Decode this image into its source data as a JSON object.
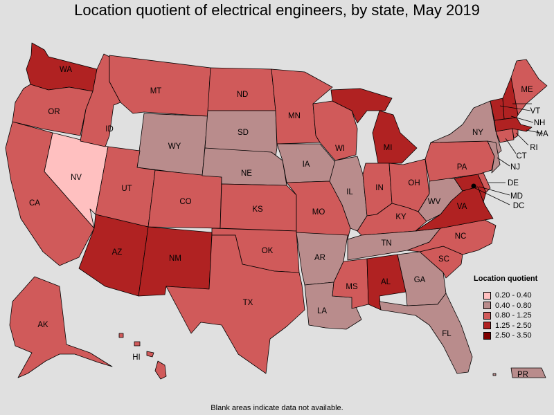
{
  "title": "Location quotient of electrical engineers, by state, May 2019",
  "footnote": "Blank areas indicate data not available.",
  "legend": {
    "title": "Location quotient",
    "bins": [
      {
        "label": "0.20 - 0.40",
        "color": "#ffc0c0"
      },
      {
        "label": "0.40 - 0.80",
        "color": "#b98c8c"
      },
      {
        "label": "0.80 - 1.25",
        "color": "#d05a5a"
      },
      {
        "label": "1.25 - 2.50",
        "color": "#b02222"
      },
      {
        "label": "2.50 - 3.50",
        "color": "#7e0000"
      }
    ]
  },
  "states": {
    "WA": "1.25 - 2.50",
    "OR": "0.80 - 1.25",
    "CA": "0.80 - 1.25",
    "NV": "0.20 - 0.40",
    "ID": "0.80 - 1.25",
    "MT": "0.80 - 1.25",
    "WY": "0.40 - 0.80",
    "UT": "0.80 - 1.25",
    "AZ": "1.25 - 2.50",
    "CO": "0.80 - 1.25",
    "NM": "1.25 - 2.50",
    "ND": "0.80 - 1.25",
    "SD": "0.40 - 0.80",
    "NE": "0.40 - 0.80",
    "KS": "0.80 - 1.25",
    "OK": "0.80 - 1.25",
    "TX": "0.80 - 1.25",
    "MN": "0.80 - 1.25",
    "IA": "0.40 - 0.80",
    "MO": "0.80 - 1.25",
    "AR": "0.40 - 0.80",
    "LA": "0.40 - 0.80",
    "WI": "0.80 - 1.25",
    "IL": "0.40 - 0.80",
    "MI": "1.25 - 2.50",
    "IN": "0.80 - 1.25",
    "OH": "0.80 - 1.25",
    "KY": "0.80 - 1.25",
    "TN": "0.40 - 0.80",
    "MS": "0.80 - 1.25",
    "AL": "1.25 - 2.50",
    "GA": "0.40 - 0.80",
    "FL": "0.40 - 0.80",
    "SC": "0.80 - 1.25",
    "NC": "0.80 - 1.25",
    "VA": "1.25 - 2.50",
    "WV": "0.40 - 0.80",
    "PA": "0.80 - 1.25",
    "NY": "0.40 - 0.80",
    "NJ": "0.40 - 0.80",
    "DE": "0.80 - 1.25",
    "MD": "1.25 - 2.50",
    "DC": "2.50 - 3.50",
    "CT": "0.80 - 1.25",
    "RI": "0.80 - 1.25",
    "MA": "1.25 - 2.50",
    "VT": "1.25 - 2.50",
    "NH": "1.25 - 2.50",
    "ME": "0.80 - 1.25",
    "AK": "0.80 - 1.25",
    "HI": "0.80 - 1.25",
    "PR": "0.40 - 0.80"
  }
}
